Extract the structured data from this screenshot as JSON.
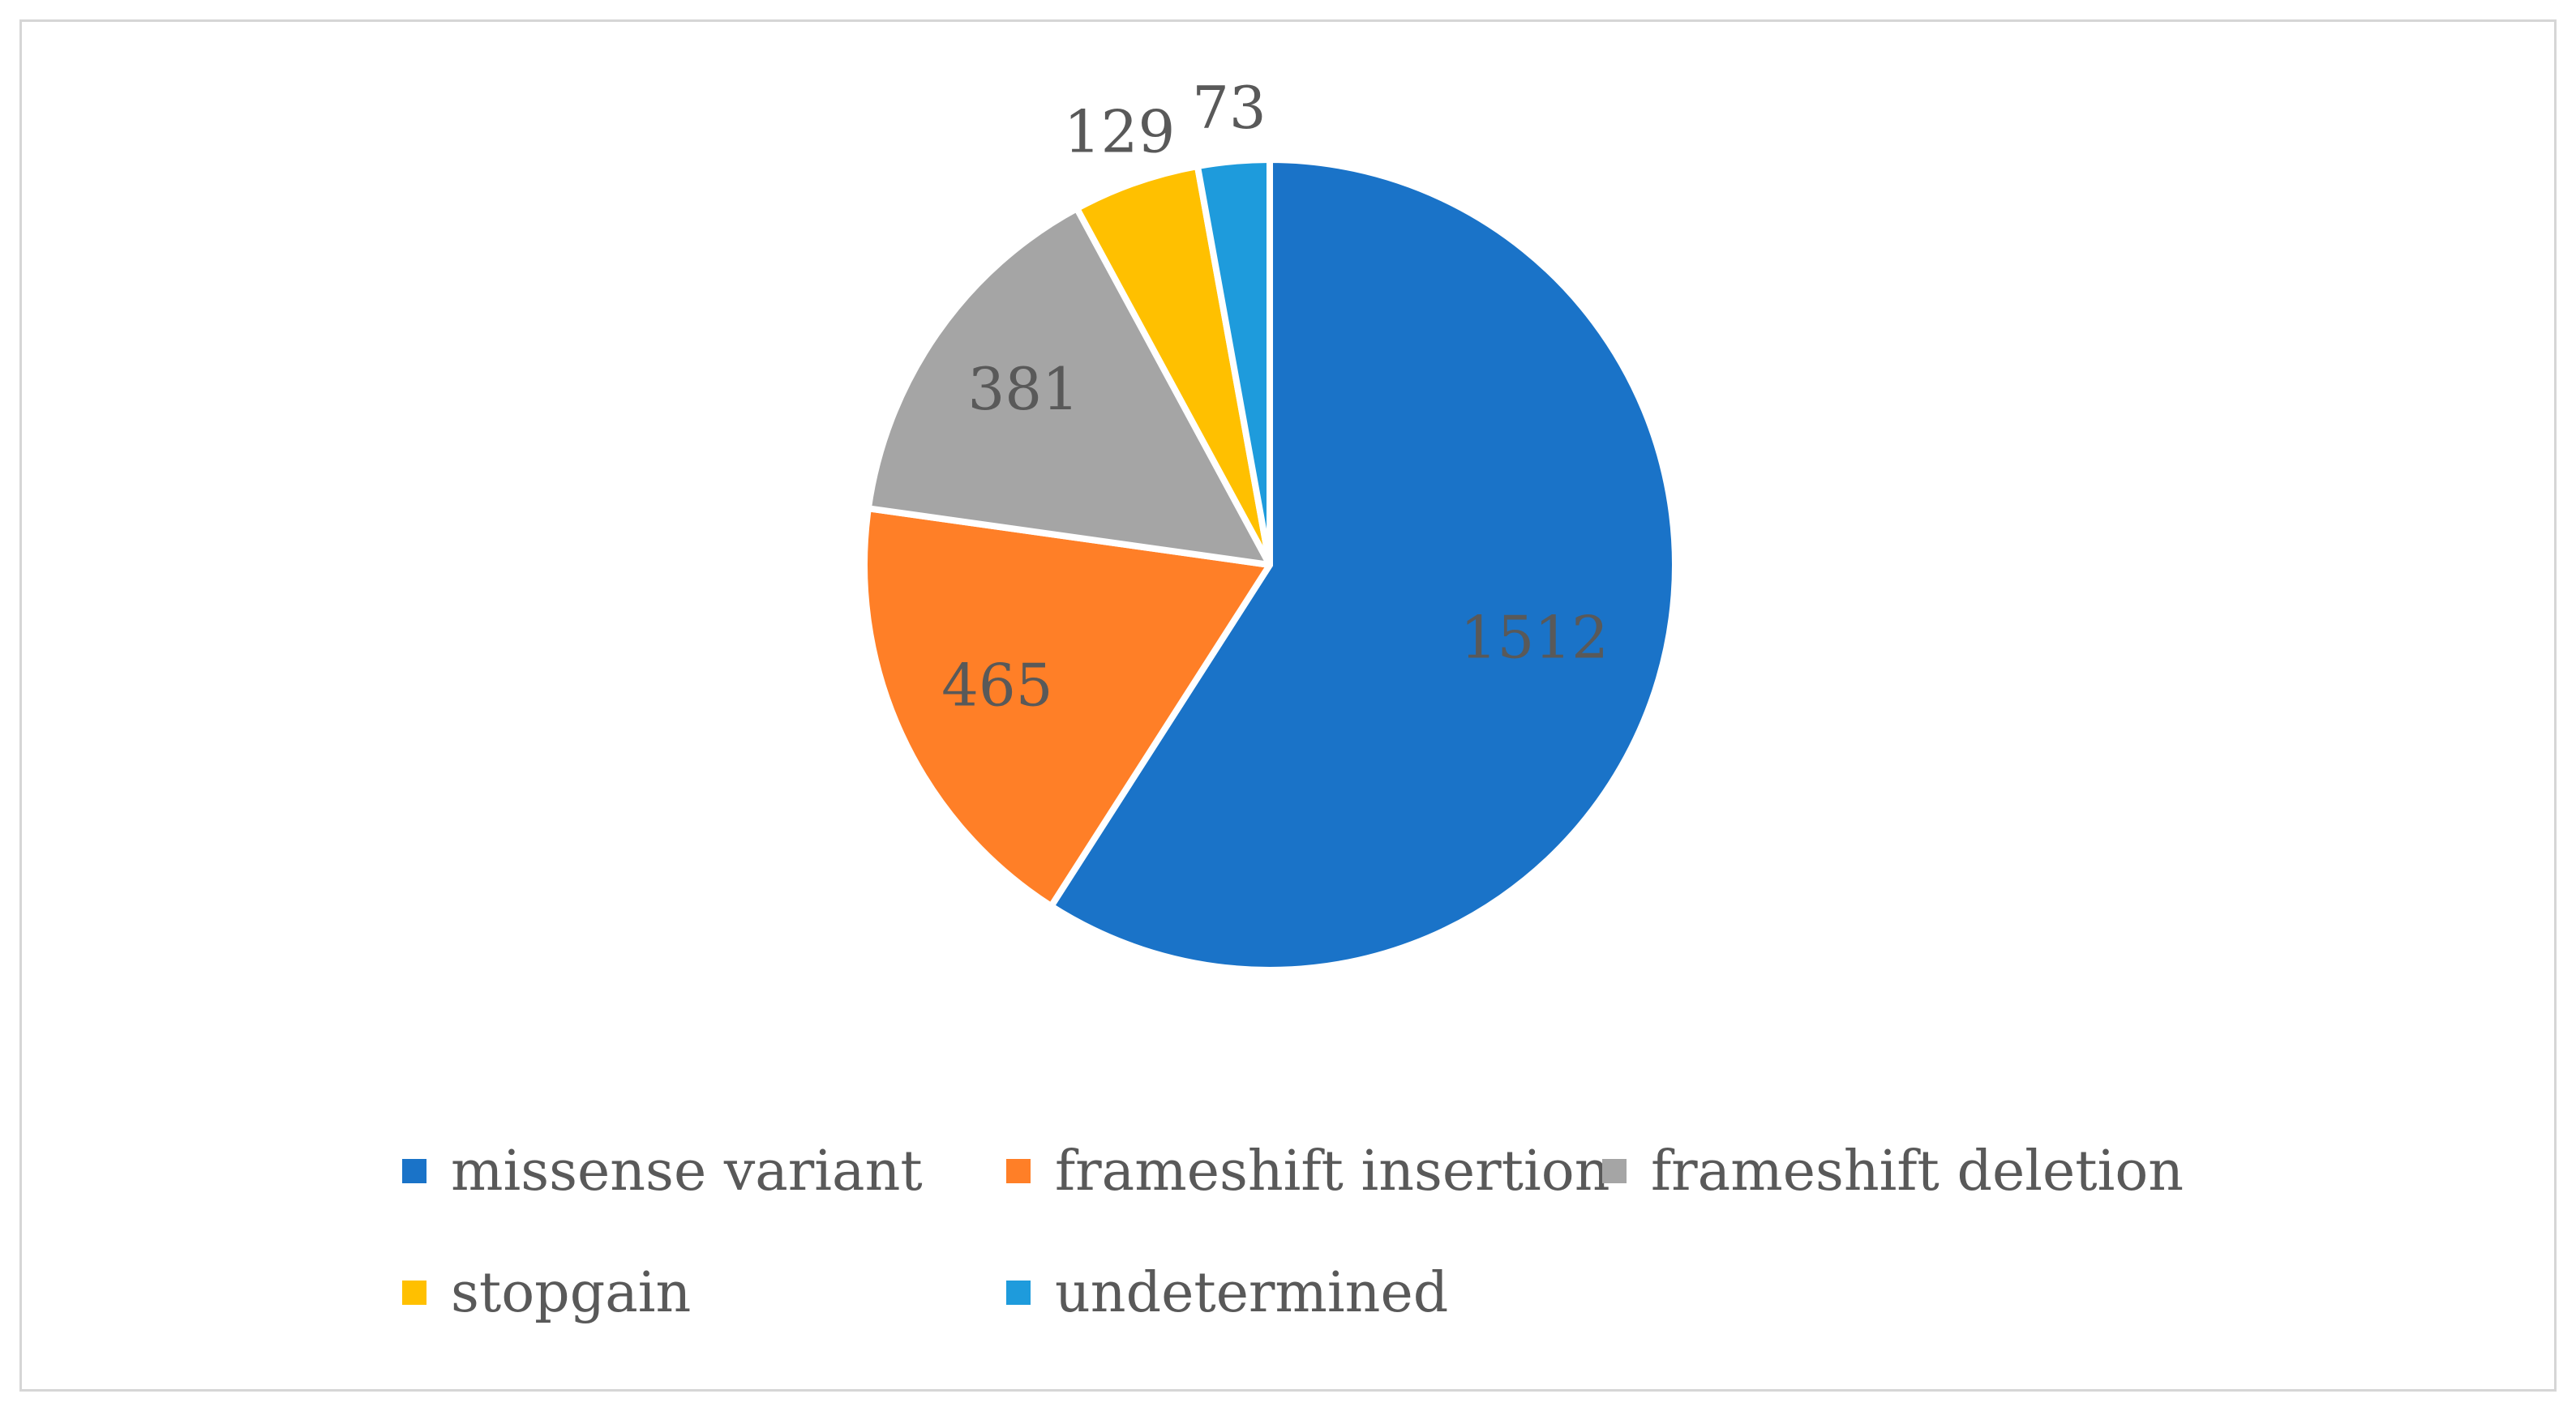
{
  "chart_data": {
    "type": "pie",
    "title": "",
    "start_angle_deg": 0,
    "direction": "clockwise",
    "slices": [
      {
        "label": "missense variant",
        "value": 1512,
        "color": "#1A73C8"
      },
      {
        "label": "frameshift insertion",
        "value": 465,
        "color": "#FF7F27"
      },
      {
        "label": "frameshift deletion",
        "value": 381,
        "color": "#A5A5A5"
      },
      {
        "label": "stopgain",
        "value": 129,
        "color": "#FFC000"
      },
      {
        "label": "undetermined",
        "value": 73,
        "color": "#1E9BDC"
      }
    ],
    "data_labels": true,
    "legend_placement": "bottom",
    "slice_separator_color": "#FFFFFF"
  }
}
